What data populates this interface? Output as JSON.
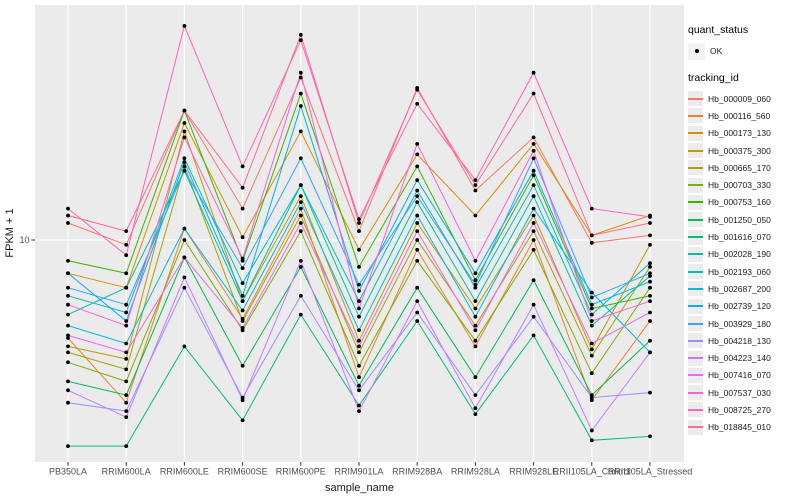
{
  "panel": {
    "background": "#EBEBEB",
    "gridline_color": "#FFFFFF",
    "tick_color": "#333333"
  },
  "y_axis": {
    "title": "FPKM + 1",
    "tick_label": "10"
  },
  "x_axis": {
    "title": "sample_name"
  },
  "legend": {
    "quant_status": {
      "title": "quant_status",
      "items": [
        {
          "label": "OK",
          "marker": "black-point"
        }
      ]
    },
    "tracking": {
      "title": "tracking_id"
    }
  },
  "chart_data": {
    "type": "line",
    "title": "",
    "xlabel": "sample_name",
    "ylabel": "FPKM + 1",
    "y_scale": "log10",
    "y_tick_values": [
      10
    ],
    "grid": "major-on",
    "legend_position": "right",
    "point_marker": {
      "shape": "point",
      "color": "#000000",
      "meaning": "quant_status OK"
    },
    "categories": [
      "PB350LA",
      "RRIM600LA",
      "RRIM600LE",
      "RRIM600SE",
      "RRIM600PE",
      "RRIM901LA",
      "RRIM928BA",
      "RRIM928LA",
      "RRIM928LE",
      "RRII105LA_Control",
      "RRII105LA_Stressed"
    ],
    "series": [
      {
        "name": "Hb_000009_060",
        "color": "#F8766D",
        "values": [
          12,
          9.5,
          40,
          14,
          57,
          11,
          51,
          17,
          30,
          9.7,
          10.5
        ]
      },
      {
        "name": "Hb_000116_560",
        "color": "#EA8331",
        "values": [
          3.5,
          1.75,
          11.3,
          4.3,
          14,
          2.3,
          9,
          3.2,
          10,
          1.8,
          4.2
        ]
      },
      {
        "name": "Hb_000173_130",
        "color": "#D89000",
        "values": [
          7,
          6,
          35,
          10.3,
          32,
          9,
          25,
          13,
          28,
          10.5,
          13
        ]
      },
      {
        "name": "Hb_000375_300",
        "color": "#C09B00",
        "values": [
          3.2,
          2.8,
          32,
          5.2,
          16,
          3.4,
          12,
          4.8,
          13,
          3.1,
          9.5
        ]
      },
      {
        "name": "Hb_000665_170",
        "color": "#A3A500",
        "values": [
          3.0,
          2.5,
          22,
          4.2,
          13,
          3.0,
          10,
          4.0,
          11,
          2.9,
          7.5
        ]
      },
      {
        "name": "Hb_000703_330",
        "color": "#7CAE00",
        "values": [
          2.7,
          2.2,
          10,
          3.8,
          11,
          2.6,
          8,
          3.4,
          9,
          2.4,
          6
        ]
      },
      {
        "name": "Hb_000753_160",
        "color": "#39B600",
        "values": [
          8,
          7,
          40,
          8,
          48,
          7.5,
          22,
          6.5,
          20,
          4.8,
          5.5
        ]
      },
      {
        "name": "Hb_001250_050",
        "color": "#00BB4E",
        "values": [
          2.2,
          1.9,
          8.3,
          2.6,
          7.5,
          2.1,
          6,
          2.3,
          6.5,
          1.9,
          3.4
        ]
      },
      {
        "name": "Hb_001616_070",
        "color": "#00BF7D",
        "values": [
          1.1,
          1.1,
          3.2,
          1.45,
          4.5,
          1.7,
          4.2,
          1.55,
          3.6,
          1.17,
          1.22
        ]
      },
      {
        "name": "Hb_002028_190",
        "color": "#00C1A3",
        "values": [
          4.5,
          6.0,
          21,
          5.2,
          18,
          4.4,
          15,
          5.2,
          16,
          4.0,
          6.8
        ]
      },
      {
        "name": "Hb_002193_060",
        "color": "#00BFC4",
        "values": [
          5.5,
          4.6,
          24,
          6.3,
          18,
          5.2,
          17,
          6.0,
          18,
          4.5,
          7.8
        ]
      },
      {
        "name": "Hb_002687_200",
        "color": "#00BAE0",
        "values": [
          4.0,
          3.3,
          11.3,
          4.7,
          15,
          3.8,
          13,
          4.4,
          14,
          5.7,
          3.0
        ]
      },
      {
        "name": "Hb_002739_120",
        "color": "#00B0F6",
        "values": [
          7.0,
          4.2,
          23,
          5.5,
          42,
          5.8,
          19,
          7.0,
          21,
          5.0,
          6.4
        ]
      },
      {
        "name": "Hb_003929_180",
        "color": "#35A2FF",
        "values": [
          6.0,
          5.0,
          21,
          7.4,
          24,
          6.2,
          16,
          6.2,
          24,
          5.4,
          7.0
        ]
      },
      {
        "name": "Hb_004218_130",
        "color": "#9590FF",
        "values": [
          1.75,
          1.6,
          6.0,
          1.85,
          5.5,
          2.0,
          4.6,
          1.9,
          4.4,
          1.85,
          1.95
        ]
      },
      {
        "name": "Hb_004223_140",
        "color": "#C77CFF",
        "values": [
          2.0,
          1.5,
          6.7,
          1.8,
          8.0,
          1.6,
          5.2,
          1.65,
          5.0,
          1.3,
          3.0
        ]
      },
      {
        "name": "Hb_007416_070",
        "color": "#E76BF3",
        "values": [
          3.6,
          3.0,
          8.3,
          3.9,
          12,
          3.2,
          11,
          3.8,
          12,
          3.3,
          4.6
        ]
      },
      {
        "name": "Hb_007537_030",
        "color": "#FA62DB",
        "values": [
          5.0,
          4.0,
          30,
          8.2,
          60,
          4.8,
          28,
          8,
          26,
          4.2,
          5.2
        ]
      },
      {
        "name": "Hb_008725_270",
        "color": "#FF62BC",
        "values": [
          14,
          8.5,
          99,
          22,
          85,
          12.5,
          43,
          19,
          60,
          14,
          12.8
        ]
      },
      {
        "name": "Hb_018845_010",
        "color": "#FF6A98",
        "values": [
          13,
          11,
          40,
          17.5,
          90,
          12,
          50,
          18,
          48,
          10.5,
          12
        ]
      }
    ]
  }
}
